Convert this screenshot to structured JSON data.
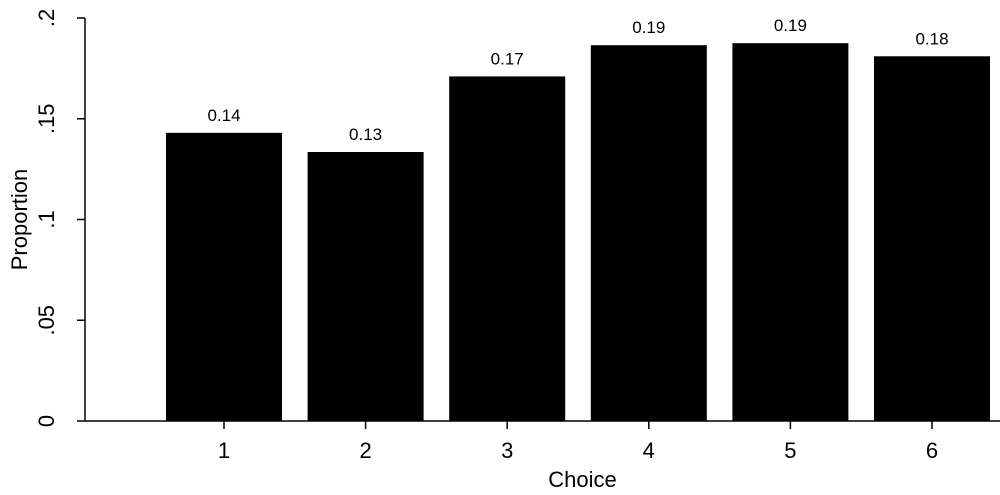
{
  "chart_data": {
    "type": "bar",
    "title": "",
    "xlabel": "Choice",
    "ylabel": "Proportion",
    "categories": [
      "1",
      "2",
      "3",
      "4",
      "5",
      "6"
    ],
    "values": [
      0.143,
      0.1335,
      0.171,
      0.1865,
      0.1875,
      0.181
    ],
    "value_labels": [
      "0.14",
      "0.13",
      "0.17",
      "0.19",
      "0.19",
      "0.18"
    ],
    "yticks": [
      0,
      0.05,
      0.1,
      0.15,
      0.2
    ],
    "ytick_labels": [
      "0",
      ".05",
      ".1",
      ".15",
      ".2"
    ],
    "ylim": [
      0,
      0.2
    ],
    "grid": false,
    "legend": "none",
    "bar_color": "#000000"
  }
}
